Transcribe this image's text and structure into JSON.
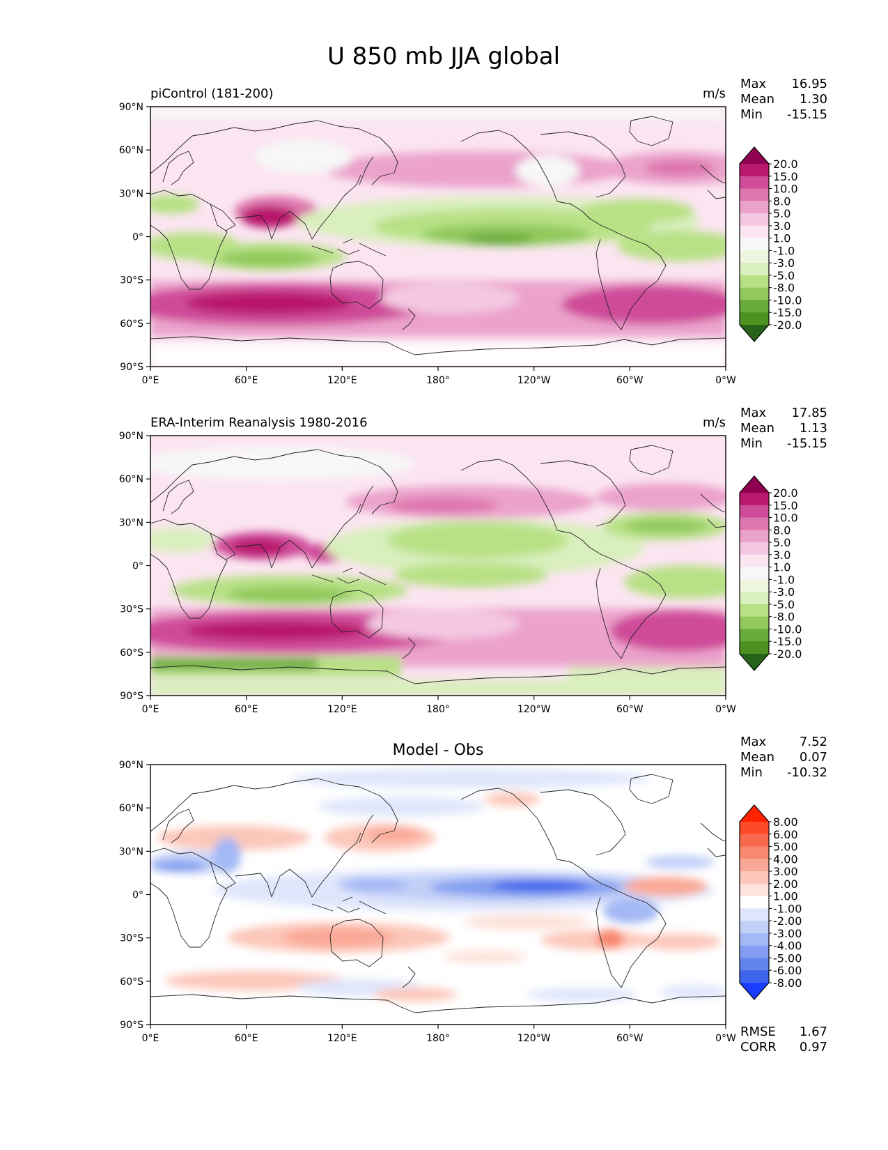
{
  "figure": {
    "title": "U 850 mb JJA global"
  },
  "chart_data": [
    {
      "type": "heatmap",
      "name": "model",
      "title_left": "piControl (181-200)",
      "title_center": "",
      "units": "m/s",
      "stats": [
        {
          "label": "Max",
          "value": "16.95"
        },
        {
          "label": "Mean",
          "value": "1.30"
        },
        {
          "label": "Min",
          "value": "-15.15"
        }
      ],
      "xlim": [
        0,
        360
      ],
      "ylim": [
        -90,
        90
      ],
      "x_ticks": [
        "0°E",
        "60°E",
        "120°E",
        "180°",
        "120°W",
        "60°W",
        "0°W"
      ],
      "y_ticks": [
        "90°N",
        "60°N",
        "30°N",
        "0°",
        "30°S",
        "60°S",
        "90°S"
      ],
      "colorbar": {
        "labels": [
          "20.0",
          "15.0",
          "10.0",
          "8.0",
          "5.0",
          "3.0",
          "1.0",
          "-1.0",
          "-3.0",
          "-5.0",
          "-8.0",
          "-10.0",
          "-15.0",
          "-20.0"
        ],
        "colors": [
          "#8e0152",
          "#b8196d",
          "#cf4c9a",
          "#de77ae",
          "#eba3cc",
          "#f4c8e2",
          "#fbe5f1",
          "#f7f7f7",
          "#eef6df",
          "#d9efbd",
          "#b8e186",
          "#91c95c",
          "#6aab3d",
          "#4d9221",
          "#276419"
        ]
      }
    },
    {
      "type": "heatmap",
      "name": "obs",
      "title_left": "ERA-Interim Reanalysis 1980-2016",
      "title_center": "",
      "units": "m/s",
      "stats": [
        {
          "label": "Max",
          "value": "17.85"
        },
        {
          "label": "Mean",
          "value": "1.13"
        },
        {
          "label": "Min",
          "value": "-15.15"
        }
      ],
      "xlim": [
        0,
        360
      ],
      "ylim": [
        -90,
        90
      ],
      "x_ticks": [
        "0°E",
        "60°E",
        "120°E",
        "180°",
        "120°W",
        "60°W",
        "0°W"
      ],
      "y_ticks": [
        "90°N",
        "60°N",
        "30°N",
        "0°",
        "30°S",
        "60°S",
        "90°S"
      ],
      "colorbar": {
        "labels": [
          "20.0",
          "15.0",
          "10.0",
          "8.0",
          "5.0",
          "3.0",
          "1.0",
          "-1.0",
          "-3.0",
          "-5.0",
          "-8.0",
          "-10.0",
          "-15.0",
          "-20.0"
        ],
        "colors": [
          "#8e0152",
          "#b8196d",
          "#cf4c9a",
          "#de77ae",
          "#eba3cc",
          "#f4c8e2",
          "#fbe5f1",
          "#f7f7f7",
          "#eef6df",
          "#d9efbd",
          "#b8e186",
          "#91c95c",
          "#6aab3d",
          "#4d9221",
          "#276419"
        ]
      }
    },
    {
      "type": "heatmap",
      "name": "diff",
      "title_left": "",
      "title_center": "Model - Obs",
      "units": "",
      "stats": [
        {
          "label": "Max",
          "value": "7.52"
        },
        {
          "label": "Mean",
          "value": "0.07"
        },
        {
          "label": "Min",
          "value": "-10.32"
        }
      ],
      "extra_stats": [
        {
          "label": "RMSE",
          "value": "1.67"
        },
        {
          "label": "CORR",
          "value": "0.97"
        }
      ],
      "xlim": [
        0,
        360
      ],
      "ylim": [
        -90,
        90
      ],
      "x_ticks": [
        "0°E",
        "60°E",
        "120°E",
        "180°",
        "120°W",
        "60°W",
        "0°W"
      ],
      "y_ticks": [
        "90°N",
        "60°N",
        "30°N",
        "0°",
        "30°S",
        "60°S",
        "90°S"
      ],
      "colorbar": {
        "labels": [
          "8.00",
          "6.00",
          "5.00",
          "4.00",
          "3.00",
          "2.00",
          "1.00",
          "-1.00",
          "-2.00",
          "-3.00",
          "-4.00",
          "-5.00",
          "-6.00",
          "-8.00"
        ],
        "colors": [
          "#ff2200",
          "#ff4a2a",
          "#f86a4e",
          "#f88870",
          "#faa896",
          "#fcc7ba",
          "#fde3dc",
          "#ffffff",
          "#dfe6fb",
          "#c2d0f8",
          "#a3b8f4",
          "#839ef0",
          "#6384ec",
          "#3f64ec",
          "#1a3cff"
        ]
      }
    }
  ]
}
